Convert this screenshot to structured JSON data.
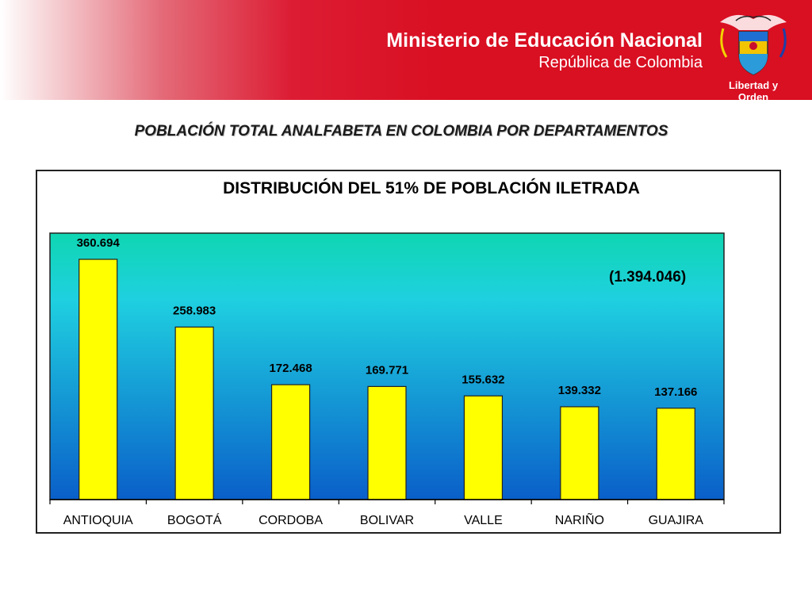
{
  "header": {
    "ministry": "Ministerio de Educación Nacional",
    "country": "República de Colombia",
    "motto": "Libertad y Orden",
    "brand_color": "#d90f22"
  },
  "page_title": "POBLACIÓN TOTAL ANALFABETA EN COLOMBIA POR DEPARTAMENTOS",
  "chart_data": {
    "type": "bar",
    "title": "DISTRIBUCIÓN DEL 51% DE POBLACIÓN ILETRADA",
    "annotation": "(1.394.046)",
    "categories": [
      "ANTIOQUIA",
      "BOGOTÁ",
      "CORDOBA",
      "BOLIVAR",
      "VALLE",
      "NARIÑO",
      "GUAJIRA"
    ],
    "values": [
      360694,
      258983,
      172468,
      169771,
      155632,
      139332,
      137166
    ],
    "data_labels": [
      "360.694",
      "258.983",
      "172.468",
      "169.771",
      "155.632",
      "139.332",
      "137.166"
    ],
    "ylim": [
      0,
      400000
    ],
    "bar_color": "#ffff00",
    "background_gradient": [
      "#0fd6b2",
      "#1fd0e0",
      "#0a5fc9"
    ]
  }
}
